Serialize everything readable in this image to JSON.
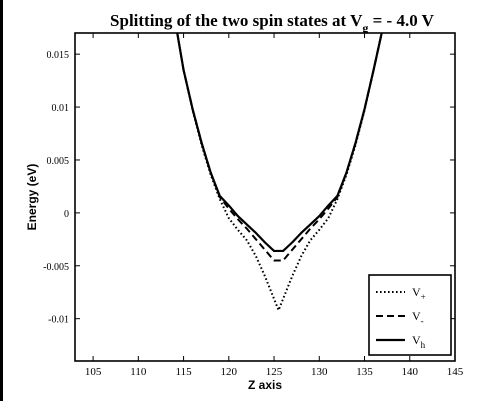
{
  "chart_data": {
    "type": "line",
    "title": {
      "main": "Splitting of the two spin states at V",
      "sub": "g",
      "rest": " = - 4.0 V"
    },
    "xlabel": "Z axis",
    "ylabel": "Energy (eV)",
    "xlim": [
      103,
      145
    ],
    "ylim": [
      -0.014,
      0.017
    ],
    "x_ticks": [
      105,
      110,
      115,
      120,
      125,
      130,
      135,
      140,
      145
    ],
    "y_ticks": [
      -0.01,
      -0.005,
      0,
      0.005,
      0.01,
      0.015
    ],
    "x_tick_labels": [
      "105",
      "110",
      "115",
      "120",
      "125",
      "130",
      "135",
      "140",
      "145"
    ],
    "y_tick_labels": [
      "-0.01",
      "-0.005",
      "0",
      "0.005",
      "0.01",
      "0.015"
    ],
    "grid": false,
    "legend_position": "bottom-right",
    "series": [
      {
        "name": "V",
        "name_sub": "+",
        "style": "dotted",
        "x": [
          114.3,
          115,
          116,
          117,
          118,
          119,
          120,
          121,
          122,
          123,
          124,
          125.5,
          127,
          128,
          129,
          130,
          131,
          132,
          133,
          134,
          135,
          136,
          136.9
        ],
        "y": [
          0.017,
          0.0135,
          0.0097,
          0.0064,
          0.0036,
          0.0013,
          -0.0005,
          -0.0016,
          -0.0026,
          -0.0041,
          -0.006,
          -0.0092,
          -0.006,
          -0.0041,
          -0.0026,
          -0.0016,
          -0.0005,
          0.0013,
          0.0036,
          0.0064,
          0.0097,
          0.0135,
          0.017
        ]
      },
      {
        "name": "V",
        "name_sub": "-",
        "style": "dashed",
        "x": [
          114.3,
          115,
          116,
          117,
          118,
          119,
          120,
          121,
          122,
          123,
          124,
          125,
          126,
          127,
          128,
          129,
          130,
          131,
          132,
          133,
          134,
          135,
          136,
          136.9
        ],
        "y": [
          0.017,
          0.0135,
          0.0098,
          0.0066,
          0.0038,
          0.0015,
          0.0004,
          -0.0006,
          -0.0015,
          -0.0025,
          -0.0035,
          -0.0045,
          -0.0045,
          -0.0035,
          -0.0025,
          -0.0015,
          -0.0006,
          0.0004,
          0.0015,
          0.0038,
          0.0066,
          0.0098,
          0.0135,
          0.017
        ]
      },
      {
        "name": "V",
        "name_sub": "h",
        "style": "solid",
        "x": [
          114.3,
          115,
          116,
          117,
          118,
          119,
          120,
          121,
          122,
          123,
          124,
          125,
          126,
          127,
          128,
          129,
          130,
          131,
          132,
          133,
          134,
          135,
          136,
          136.9
        ],
        "y": [
          0.017,
          0.0135,
          0.0098,
          0.0066,
          0.0038,
          0.0016,
          0.0007,
          -0.0003,
          -0.0011,
          -0.0019,
          -0.0028,
          -0.0036,
          -0.0036,
          -0.0028,
          -0.0019,
          -0.0011,
          -0.0003,
          0.0007,
          0.0016,
          0.0038,
          0.0066,
          0.0098,
          0.0135,
          0.017
        ]
      }
    ]
  }
}
